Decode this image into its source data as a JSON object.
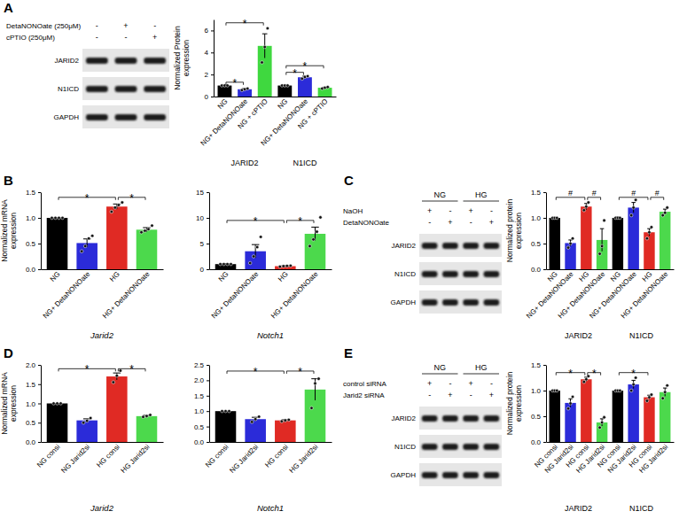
{
  "panel_labels": [
    "A",
    "B",
    "C",
    "D",
    "E"
  ],
  "blots": [
    {
      "treatments": [
        {
          "label": "DetaNONOate (250μM)",
          "signs": [
            "-",
            "+",
            "-"
          ]
        },
        {
          "label": "cPTIO (250μM)",
          "signs": [
            "-",
            "-",
            "+"
          ]
        }
      ],
      "bands": [
        "JARID2",
        "N1ICD",
        "GAPDH"
      ]
    },
    {
      "groups": [
        "NG",
        "HG"
      ],
      "treatments": [
        {
          "label": "NaOH",
          "signs": [
            "+",
            "-",
            "+",
            "-"
          ]
        },
        {
          "label": "DetaNONOate",
          "signs": [
            "-",
            "+",
            "-",
            "+"
          ]
        }
      ],
      "bands": [
        "JARID2",
        "N1ICD",
        "GAPDH"
      ]
    },
    {
      "groups": [
        "NG",
        "HG"
      ],
      "treatments": [
        {
          "label": "control siRNA",
          "signs": [
            "+",
            "-",
            "+",
            "-"
          ]
        },
        {
          "label": "Jarid2 siRNA",
          "signs": [
            "-",
            "+",
            "-",
            "+"
          ]
        }
      ],
      "bands": [
        "JARID2",
        "N1ICD",
        "GAPDH"
      ]
    }
  ],
  "chart_data": [
    {
      "type": "bar",
      "y_label": "Normalized Protein expression",
      "categories": [
        "NG",
        "NG+ DetaNONOate",
        "NG + cPTIO",
        "NG",
        "NG+ DetaNONOate",
        "NG + cPTIO"
      ],
      "group_labels": [
        "JARID2",
        "N1ICD"
      ],
      "values": [
        1,
        0.66,
        4.6,
        1,
        1.75,
        0.8
      ],
      "errors": [
        0.03,
        0.07,
        1.1,
        0.04,
        0.1,
        0.05
      ],
      "points": [
        [
          1,
          1,
          1
        ],
        [
          0.58,
          0.66,
          0.73
        ],
        [
          3.1,
          4.5,
          6.2
        ],
        [
          1,
          1,
          1
        ],
        [
          1.62,
          1.78,
          1.85
        ],
        [
          0.72,
          0.8,
          0.86
        ]
      ],
      "colors": [
        "#000000",
        "#2b2bd9",
        "#3fd83f",
        "#000000",
        "#2b2bd9",
        "#3fd83f"
      ],
      "ylim": [
        0,
        7
      ],
      "yticks": [
        0,
        2,
        4,
        6
      ],
      "annotations": [
        {
          "text": "*",
          "from": 0,
          "to": 1,
          "y": 1.3
        },
        {
          "text": "*",
          "from": 0,
          "to": 2,
          "y": 6.7
        },
        {
          "text": "*",
          "from": 3,
          "to": 4,
          "y": 2.2
        },
        {
          "text": "*",
          "from": 3,
          "to": 5,
          "y": 2.8
        }
      ]
    },
    {
      "type": "bar",
      "y_label": "Normalized mRNA expression",
      "x_label": "Jarid2",
      "categories": [
        "NG",
        "NG+ DetaNONOate",
        "HG",
        "HG+ DetaNONOate"
      ],
      "values": [
        1,
        0.51,
        1.22,
        0.77
      ],
      "errors": [
        0,
        0.08,
        0.05,
        0.04
      ],
      "points": [
        [
          1,
          1,
          1,
          1
        ],
        [
          0.35,
          0.45,
          0.6,
          0.65
        ],
        [
          1.12,
          1.2,
          1.25,
          1.3
        ],
        [
          0.72,
          0.75,
          0.78,
          0.85
        ]
      ],
      "colors": [
        "#000000",
        "#2b2bd9",
        "#e02a24",
        "#4cd94c"
      ],
      "ylim": [
        0,
        1.5
      ],
      "yticks": [
        {
          "value": 0,
          "label": "0.0"
        },
        {
          "value": 0.5,
          "label": "0.5"
        },
        {
          "value": 1,
          "label": "1.0"
        },
        {
          "value": 1.5,
          "label": "1.5"
        }
      ],
      "annotations": [
        {
          "text": "*",
          "from": 0,
          "to": 2,
          "y": 1.4
        },
        {
          "text": "*",
          "from": 2,
          "to": 3,
          "y": 1.4
        }
      ]
    },
    {
      "type": "bar",
      "x_label": "Notch1",
      "categories": [
        "NG",
        "NG+ DetaNONOate",
        "HG",
        "HG+ DetaNONOate"
      ],
      "values": [
        1,
        3.5,
        0.6,
        6.9
      ],
      "errors": [
        0.1,
        1.3,
        0.1,
        1.3
      ],
      "points": [
        [
          1,
          1,
          1,
          1
        ],
        [
          1.2,
          2.5,
          4.3,
          6.3
        ],
        [
          0.5,
          0.6,
          0.65,
          0.7
        ],
        [
          4.5,
          5.8,
          7.3,
          10.1
        ]
      ],
      "colors": [
        "#000000",
        "#2b2bd9",
        "#e02a24",
        "#4cd94c"
      ],
      "ylim": [
        0,
        15
      ],
      "yticks": [
        0,
        5,
        10,
        15
      ],
      "annotations": [
        {
          "text": "*",
          "from": 0,
          "to": 2,
          "y": 9.5
        },
        {
          "text": "*",
          "from": 2,
          "to": 3,
          "y": 9.5
        }
      ]
    },
    {
      "type": "bar",
      "y_label": "Normalized protein expression",
      "categories": [
        "NG",
        "NG+ DetaNONOate",
        "HG",
        "HG+ DetaNONOate",
        "NG",
        "NG+ DetaNONOate",
        "HG",
        "HG+ DetaNONOate"
      ],
      "group_labels": [
        "JARID2",
        "N1ICD"
      ],
      "values": [
        1,
        0.51,
        1.22,
        0.57,
        1,
        1.2,
        0.72,
        1.12
      ],
      "errors": [
        0.01,
        0.06,
        0.06,
        0.22,
        0.02,
        0.1,
        0.07,
        0.05
      ],
      "points": [
        [
          1,
          1,
          1
        ],
        [
          0.42,
          0.5,
          0.6
        ],
        [
          1.15,
          1.22,
          1.3
        ],
        [
          0.3,
          0.45,
          0.95
        ],
        [
          1,
          1,
          1
        ],
        [
          1.05,
          1.2,
          1.35
        ],
        [
          0.6,
          0.72,
          0.82
        ],
        [
          1.05,
          1.1,
          1.2
        ]
      ],
      "colors": [
        "#000000",
        "#2b2bd9",
        "#e02a24",
        "#4cd94c",
        "#000000",
        "#2b2bd9",
        "#e02a24",
        "#4cd94c"
      ],
      "ylim": [
        0,
        1.5
      ],
      "yticks": [
        {
          "value": 0,
          "label": "0.0"
        },
        {
          "value": 0.5,
          "label": "0.5"
        },
        {
          "value": 1,
          "label": "1.0"
        },
        {
          "value": 1.5,
          "label": "1.5"
        }
      ],
      "annotations": [
        {
          "text": "#",
          "from": 0,
          "to": 2,
          "y": 1.4
        },
        {
          "text": "#",
          "from": 2,
          "to": 3,
          "y": 1.4
        },
        {
          "text": "#",
          "from": 4,
          "to": 6,
          "y": 1.4
        },
        {
          "text": "#",
          "from": 6,
          "to": 7,
          "y": 1.4
        }
      ]
    },
    {
      "type": "bar",
      "y_label": "Normalized mRNA expression",
      "x_label": "Jarid2",
      "categories": [
        "NG consi",
        "NG Jarid2si",
        "HG consi",
        "HG Jarid2si"
      ],
      "values": [
        1,
        0.56,
        1.7,
        0.67
      ],
      "errors": [
        0,
        0.04,
        0.09,
        0.02
      ],
      "points": [
        [
          1,
          1,
          1
        ],
        [
          0.5,
          0.55,
          0.62
        ],
        [
          1.55,
          1.72,
          1.85
        ],
        [
          0.65,
          0.67,
          0.7
        ]
      ],
      "colors": [
        "#000000",
        "#2b2bd9",
        "#e02a24",
        "#4cd94c"
      ],
      "ylim": [
        0,
        2
      ],
      "yticks": [
        {
          "value": 0,
          "label": "0.0"
        },
        {
          "value": 0.5,
          "label": "0.5"
        },
        {
          "value": 1,
          "label": "1.0"
        },
        {
          "value": 1.5,
          "label": "1.5"
        },
        {
          "value": 2,
          "label": "2.0"
        }
      ],
      "annotations": [
        {
          "text": "*",
          "from": 0,
          "to": 2,
          "y": 1.9
        },
        {
          "text": "*",
          "from": 2,
          "to": 3,
          "y": 1.9
        }
      ]
    },
    {
      "type": "bar",
      "x_label": "Notch1",
      "categories": [
        "NG consi",
        "NG Jarid2si",
        "HG consi",
        "HG Jarid2si"
      ],
      "values": [
        1,
        0.74,
        0.7,
        1.7
      ],
      "errors": [
        0,
        0.06,
        0.02,
        0.35
      ],
      "points": [
        [
          1,
          1,
          1
        ],
        [
          0.65,
          0.74,
          0.82
        ],
        [
          0.67,
          0.7,
          0.72
        ],
        [
          1.1,
          1.9,
          2.05
        ]
      ],
      "colors": [
        "#000000",
        "#2b2bd9",
        "#e02a24",
        "#4cd94c"
      ],
      "ylim": [
        0,
        2.5
      ],
      "yticks": [
        {
          "value": 0,
          "label": "0.0"
        },
        {
          "value": 0.5,
          "label": "0.5"
        },
        {
          "value": 1,
          "label": "1.0"
        },
        {
          "value": 1.5,
          "label": "1.5"
        },
        {
          "value": 2,
          "label": "2.0"
        },
        {
          "value": 2.5,
          "label": "2.5"
        }
      ],
      "annotations": [
        {
          "text": "*",
          "from": 0,
          "to": 2,
          "y": 2.3
        },
        {
          "text": "*",
          "from": 2,
          "to": 3,
          "y": 2.3
        }
      ]
    },
    {
      "type": "bar",
      "y_label": "Normalized protein expression",
      "categories": [
        "NG consi",
        "NG Jarid2si",
        "HG consi",
        "HG Jarid2si",
        "NG consi",
        "NG Jarid2si",
        "HG consi",
        "HG Jarid2si"
      ],
      "group_labels": [
        "JARID2",
        "N1ICD"
      ],
      "values": [
        1,
        0.76,
        1.22,
        0.38,
        1,
        1.12,
        0.87,
        0.97
      ],
      "errors": [
        0.01,
        0.08,
        0.04,
        0.07,
        0.01,
        0.08,
        0.04,
        0.08
      ],
      "points": [
        [
          1,
          1,
          1
        ],
        [
          0.65,
          0.75,
          0.88
        ],
        [
          1.17,
          1.22,
          1.28
        ],
        [
          0.28,
          0.38,
          0.48
        ],
        [
          1,
          1,
          1
        ],
        [
          1.0,
          1.12,
          1.25
        ],
        [
          0.8,
          0.87,
          0.92
        ],
        [
          0.85,
          0.97,
          1.1
        ]
      ],
      "colors": [
        "#000000",
        "#2b2bd9",
        "#e02a24",
        "#4cd94c",
        "#000000",
        "#2b2bd9",
        "#e02a24",
        "#4cd94c"
      ],
      "ylim": [
        0,
        1.5
      ],
      "yticks": [
        {
          "value": 0,
          "label": "0.0"
        },
        {
          "value": 0.5,
          "label": "0.5"
        },
        {
          "value": 1,
          "label": "1.0"
        },
        {
          "value": 1.5,
          "label": "1.5"
        }
      ],
      "annotations": [
        {
          "text": "*",
          "from": 0,
          "to": 2,
          "y": 1.35
        },
        {
          "text": "*",
          "from": 2,
          "to": 3,
          "y": 1.35
        },
        {
          "text": "*",
          "from": 4,
          "to": 6,
          "y": 1.35
        }
      ]
    }
  ]
}
